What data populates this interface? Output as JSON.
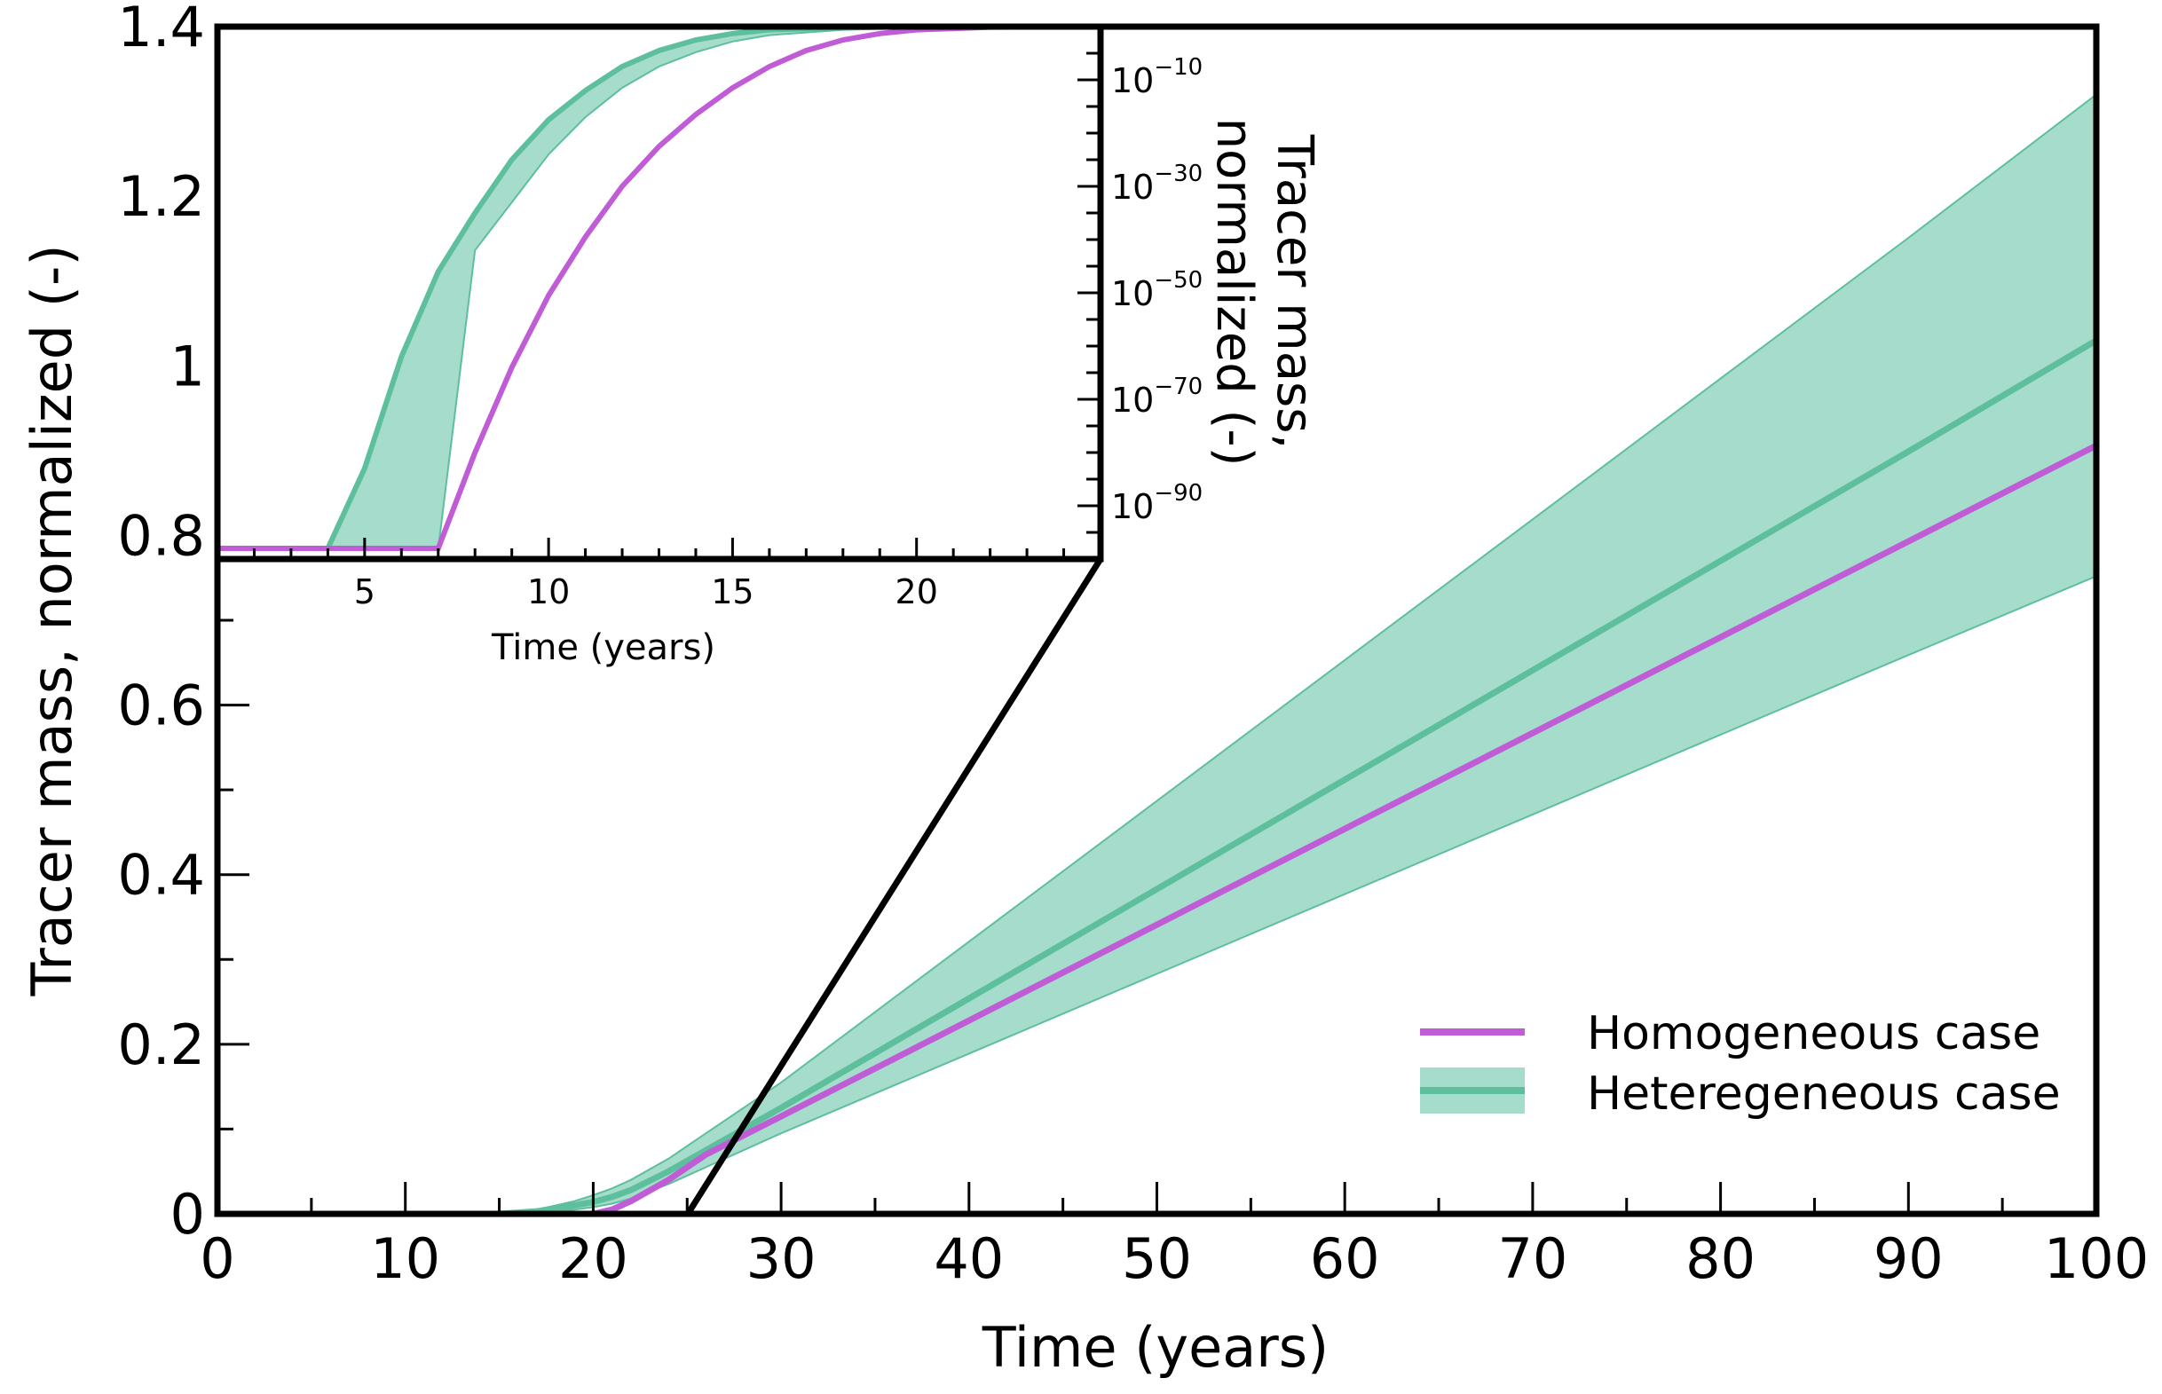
{
  "chart_data": [
    {
      "type": "line",
      "name": "main",
      "xlabel": "Time (years)",
      "ylabel": "Tracer mass, normalized (-)",
      "xlim": [
        0,
        100
      ],
      "ylim": [
        0,
        1.4
      ],
      "xticks": [
        0,
        10,
        20,
        30,
        40,
        50,
        60,
        70,
        80,
        90,
        100
      ],
      "yticks": [
        0,
        0.2,
        0.4,
        0.6,
        0.8,
        1,
        1.2,
        1.4
      ],
      "ytick_labels": [
        "0",
        "0.2",
        "0.4",
        "0.6",
        "0.8",
        "1",
        "1.2",
        "1.4"
      ],
      "series": [
        {
          "name": "Homogeneous case",
          "color": "#c05cd6",
          "x": [
            0,
            10,
            15,
            20,
            21,
            22,
            24,
            26,
            30,
            40,
            50,
            60,
            70,
            80,
            90,
            100
          ],
          "y": [
            0,
            0,
            0,
            0,
            0.005,
            0.015,
            0.04,
            0.07,
            0.115,
            0.228,
            0.341,
            0.454,
            0.567,
            0.68,
            0.793,
            0.906
          ]
        },
        {
          "name": "Heteregeneous case",
          "color": "#5dbf9c",
          "band_color": "#a6dccb",
          "x": [
            0,
            10,
            15,
            17,
            19,
            20,
            21,
            22,
            24,
            26,
            30,
            40,
            50,
            60,
            70,
            80,
            90,
            100
          ],
          "y": [
            0,
            0,
            0,
            0.003,
            0.01,
            0.014,
            0.02,
            0.028,
            0.05,
            0.075,
            0.125,
            0.254,
            0.383,
            0.512,
            0.641,
            0.77,
            0.899,
            1.03
          ],
          "lower": [
            0,
            0,
            0,
            0.001,
            0.005,
            0.008,
            0.012,
            0.018,
            0.035,
            0.055,
            0.095,
            0.189,
            0.283,
            0.377,
            0.471,
            0.565,
            0.659,
            0.752
          ],
          "upper": [
            0,
            0,
            0,
            0.005,
            0.015,
            0.022,
            0.03,
            0.04,
            0.065,
            0.095,
            0.155,
            0.321,
            0.487,
            0.653,
            0.819,
            0.985,
            1.151,
            1.32
          ]
        }
      ],
      "legend": {
        "position": "bottom-right",
        "entries": [
          "Homogeneous case",
          "Heteregeneous case"
        ]
      }
    },
    {
      "type": "line",
      "name": "inset",
      "xlabel": "Time (years)",
      "ylabel_line1": "Tracer mass,",
      "ylabel_line2": "normalized (-)",
      "y_scale": "log",
      "xlim": [
        1,
        25
      ],
      "ylim_log10": [
        -100,
        0
      ],
      "xticks": [
        5,
        10,
        15,
        20
      ],
      "ytick_exponents": [
        -10,
        -30,
        -50,
        -70,
        -90
      ],
      "y_floor_log10": -98,
      "series": [
        {
          "name": "Homogeneous case",
          "x": [
            1,
            7,
            8,
            9,
            10,
            11,
            12,
            13,
            14,
            15,
            16,
            17,
            18,
            19,
            20,
            22,
            25
          ],
          "log10_y": [
            -98,
            -98,
            -80,
            -64,
            -50.5,
            -39.5,
            -30,
            -22.5,
            -16.5,
            -11.5,
            -7.5,
            -4.5,
            -2.5,
            -1.3,
            -0.6,
            -0.1,
            0
          ]
        },
        {
          "name": "Heteregeneous case",
          "x": [
            1,
            4,
            5,
            6,
            7,
            8,
            9,
            10,
            11,
            12,
            13,
            14,
            15,
            16,
            18,
            20,
            25
          ],
          "lower_log10": [
            -98,
            -98,
            -98,
            -98,
            -98,
            -42,
            -33,
            -24,
            -17,
            -11.5,
            -7.5,
            -4.8,
            -2.8,
            -1.6,
            -0.6,
            -0.2,
            0
          ],
          "upper_log10": [
            -98,
            -98,
            -83,
            -62,
            -46,
            -35,
            -25,
            -17.5,
            -12,
            -7.5,
            -4.5,
            -2.5,
            -1.3,
            -0.6,
            -0.2,
            0,
            0
          ]
        }
      ]
    }
  ]
}
